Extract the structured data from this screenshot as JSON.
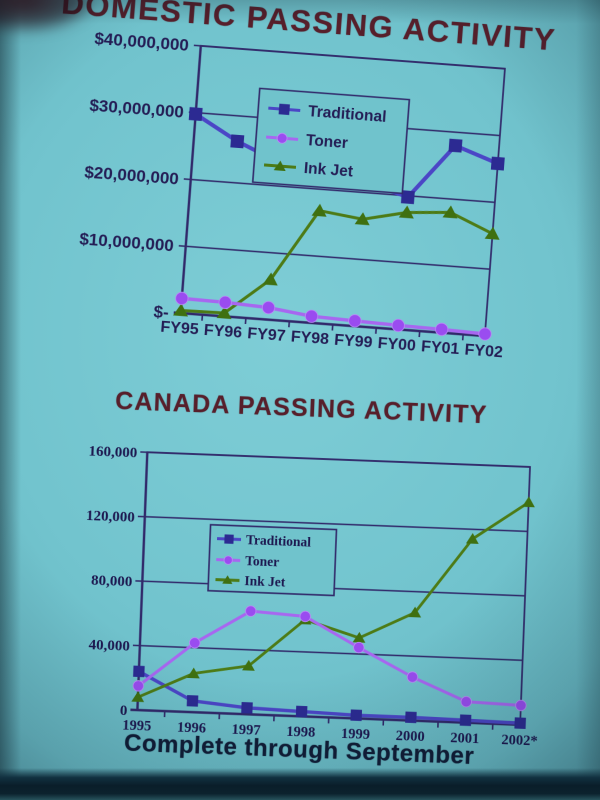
{
  "slide": {
    "footer": "Complete through September"
  },
  "colors": {
    "background": "#70c3cc",
    "grid": "#31296a",
    "title": "#571f2b",
    "footer": "#101c36",
    "traditional": "#2c2a92",
    "toner": "#9a4cf0",
    "ink_jet": "#3f7010"
  },
  "chart_data": [
    {
      "type": "line",
      "title": "DOMESTIC PASSING ACTIVITY",
      "categories": [
        "FY95",
        "FY96",
        "FY97",
        "FY98",
        "FY99",
        "FY00",
        "FY01",
        "FY02"
      ],
      "y_ticks": [
        "$40,000,000",
        "$30,000,000",
        "$20,000,000",
        "$10,000,000",
        "$-"
      ],
      "ylim": [
        0,
        40000000
      ],
      "grid": true,
      "legend_position": "inside-top",
      "series": [
        {
          "name": "Traditional",
          "marker": "square",
          "color": "#4b46c6",
          "marker_color": "#2c2a92",
          "values": [
            29800000,
            26200000,
            23500000,
            21400000,
            21600000,
            19800000,
            28000000,
            25800000
          ]
        },
        {
          "name": "Toner",
          "marker": "circle",
          "color": "#a767f0",
          "marker_color": "#9a4cf0",
          "values": [
            2200000,
            2100000,
            1800000,
            1000000,
            800000,
            600000,
            500000,
            300000
          ]
        },
        {
          "name": "Ink Jet",
          "marker": "triangle",
          "color": "#4d7b16",
          "marker_color": "#3f7010",
          "values": [
            400000,
            500000,
            6000000,
            16800000,
            16000000,
            17500000,
            18000000,
            15300000
          ]
        }
      ]
    },
    {
      "type": "line",
      "title": "CANADA PASSING ACTIVITY",
      "categories": [
        "1995",
        "1996",
        "1997",
        "1998",
        "1999",
        "2000",
        "2001",
        "2002*"
      ],
      "y_ticks": [
        "160,000",
        "120,000",
        "80,000",
        "40,000",
        "0"
      ],
      "ylim": [
        0,
        160000
      ],
      "grid": true,
      "legend_position": "inside-left",
      "series": [
        {
          "name": "Traditional",
          "marker": "square",
          "color": "#4b46c6",
          "marker_color": "#2c2a92",
          "values": [
            24000,
            7000,
            4000,
            3000,
            2000,
            2000,
            1500,
            1000
          ]
        },
        {
          "name": "Toner",
          "marker": "circle",
          "color": "#a767f0",
          "marker_color": "#9a4cf0",
          "values": [
            15000,
            43000,
            64000,
            62000,
            44000,
            27000,
            13000,
            12000
          ]
        },
        {
          "name": "Ink Jet",
          "marker": "triangle",
          "color": "#4d7b16",
          "marker_color": "#3f7010",
          "values": [
            8000,
            24000,
            30000,
            60000,
            50000,
            67000,
            114000,
            138000
          ]
        }
      ]
    }
  ]
}
